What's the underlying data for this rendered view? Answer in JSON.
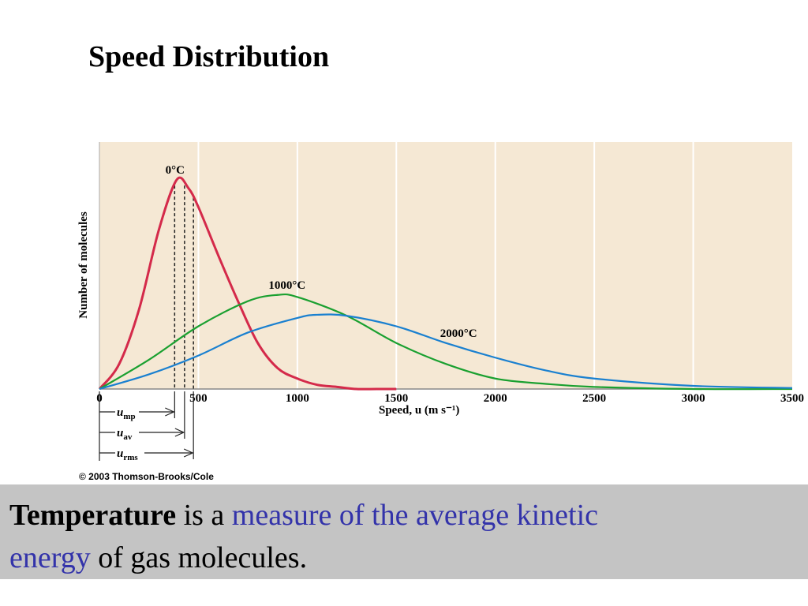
{
  "slide": {
    "title": "Speed Distribution",
    "caption": {
      "bold": "Temperature",
      "plain1": " is a ",
      "accent1": "measure of the average kinetic",
      "accent2": "energy",
      "plain2": " of gas molecules."
    }
  },
  "chart_data": {
    "type": "line",
    "xlabel": "Speed, u (m s⁻¹)",
    "ylabel": "Number of molecules",
    "xlim": [
      0,
      3500
    ],
    "x_ticks": [
      0,
      500,
      1000,
      1500,
      2000,
      2500,
      3000,
      3500
    ],
    "grid": "vertical",
    "copyright": "© 2003 Thomson-Brooks/Cole",
    "series": [
      {
        "name": "0°C",
        "color": "#d42a4a",
        "peak_relative": 1.0,
        "x": [
          0,
          100,
          200,
          300,
          390,
          450,
          500,
          600,
          700,
          800,
          900,
          1000,
          1100,
          1200,
          1300,
          1400,
          1500
        ],
        "y": [
          0.0,
          0.12,
          0.38,
          0.76,
          1.0,
          0.96,
          0.87,
          0.64,
          0.42,
          0.22,
          0.1,
          0.05,
          0.02,
          0.01,
          0.0,
          0.0,
          0.0
        ]
      },
      {
        "name": "1000°C",
        "color": "#1aa030",
        "peak_relative": 0.46,
        "x": [
          0,
          250,
          500,
          750,
          900,
          1000,
          1250,
          1500,
          1750,
          2000,
          2250,
          2500,
          3000,
          3500
        ],
        "y": [
          0.0,
          0.14,
          0.3,
          0.42,
          0.45,
          0.44,
          0.35,
          0.22,
          0.12,
          0.05,
          0.025,
          0.01,
          0.0,
          0.0
        ]
      },
      {
        "name": "2000°C",
        "color": "#1a80d0",
        "peak_relative": 0.36,
        "x": [
          0,
          250,
          500,
          750,
          1000,
          1100,
          1250,
          1500,
          1750,
          2000,
          2250,
          2500,
          3000,
          3500
        ],
        "y": [
          0.0,
          0.07,
          0.16,
          0.27,
          0.34,
          0.355,
          0.35,
          0.3,
          0.22,
          0.15,
          0.09,
          0.05,
          0.015,
          0.005
        ]
      }
    ],
    "speed_markers": {
      "u_mp": 380,
      "u_av": 430,
      "u_rms": 475,
      "labels": [
        {
          "symbol": "u",
          "sub": "mp"
        },
        {
          "symbol": "u",
          "sub": "av"
        },
        {
          "symbol": "u",
          "sub": "rms"
        }
      ]
    }
  }
}
